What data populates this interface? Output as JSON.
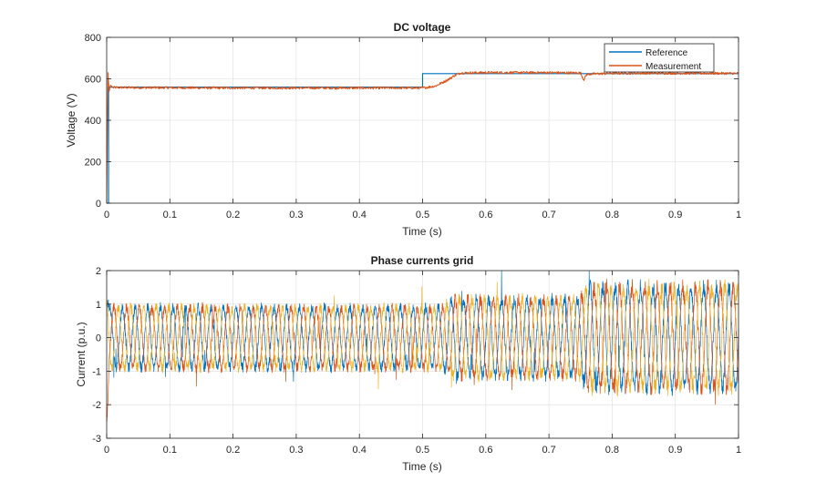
{
  "colors": {
    "reference": "#0072BD",
    "measurement": "#D95319",
    "phase_a": "#0072BD",
    "phase_b": "#D95319",
    "phase_c": "#EDB120",
    "grid": "#dcdcdc",
    "axes": "#262626"
  },
  "chart_data": [
    {
      "type": "line",
      "title": "DC voltage",
      "xlabel": "Time (s)",
      "ylabel": "Voltage (V)",
      "xlim": [
        0,
        1
      ],
      "ylim": [
        0,
        800
      ],
      "xticks": [
        "0",
        "0.1",
        "0.2",
        "0.3",
        "0.4",
        "0.5",
        "0.6",
        "0.7",
        "0.8",
        "0.9",
        "1"
      ],
      "yticks": [
        "0",
        "200",
        "400",
        "600",
        "800"
      ],
      "grid": true,
      "legend_position": "top-right",
      "series": [
        {
          "name": "Reference",
          "color_key": "reference",
          "x": [
            0,
            0.003,
            0.003,
            0.5,
            0.5,
            1.0
          ],
          "y": [
            0,
            0,
            560,
            560,
            625,
            625
          ]
        },
        {
          "name": "Measurement",
          "color_key": "measurement",
          "x": [
            0,
            0.002,
            0.004,
            0.006,
            0.01,
            0.1,
            0.2,
            0.3,
            0.4,
            0.5,
            0.52,
            0.54,
            0.55,
            0.56,
            0.6,
            0.7,
            0.75,
            0.755,
            0.76,
            0.8,
            0.9,
            1.0
          ],
          "y": [
            0,
            630,
            540,
            570,
            558,
            557,
            556,
            556,
            556,
            556,
            565,
            595,
            615,
            628,
            630,
            630,
            628,
            595,
            622,
            627,
            627,
            626
          ],
          "noise_amplitude": 6
        }
      ]
    },
    {
      "type": "line",
      "title": "Phase currents grid",
      "xlabel": "Time (s)",
      "ylabel": "Current (p.u.)",
      "xlim": [
        0,
        1
      ],
      "ylim": [
        -3,
        2
      ],
      "xticks": [
        "0",
        "0.1",
        "0.2",
        "0.3",
        "0.4",
        "0.5",
        "0.6",
        "0.7",
        "0.8",
        "0.9",
        "1"
      ],
      "yticks": [
        "-3",
        "-2",
        "-1",
        "0",
        "1",
        "2"
      ],
      "grid": true,
      "frequency_hz": 50,
      "amplitude_profile": {
        "t": [
          0,
          0.53,
          0.55,
          0.75,
          0.76,
          1.0
        ],
        "amplitude": [
          0.9,
          0.9,
          1.15,
          1.15,
          1.5,
          1.5
        ]
      },
      "series": [
        {
          "phase_deg": 0,
          "color_key": "phase_a"
        },
        {
          "phase_deg": -120,
          "color_key": "phase_b"
        },
        {
          "phase_deg": 120,
          "color_key": "phase_c"
        }
      ]
    }
  ]
}
